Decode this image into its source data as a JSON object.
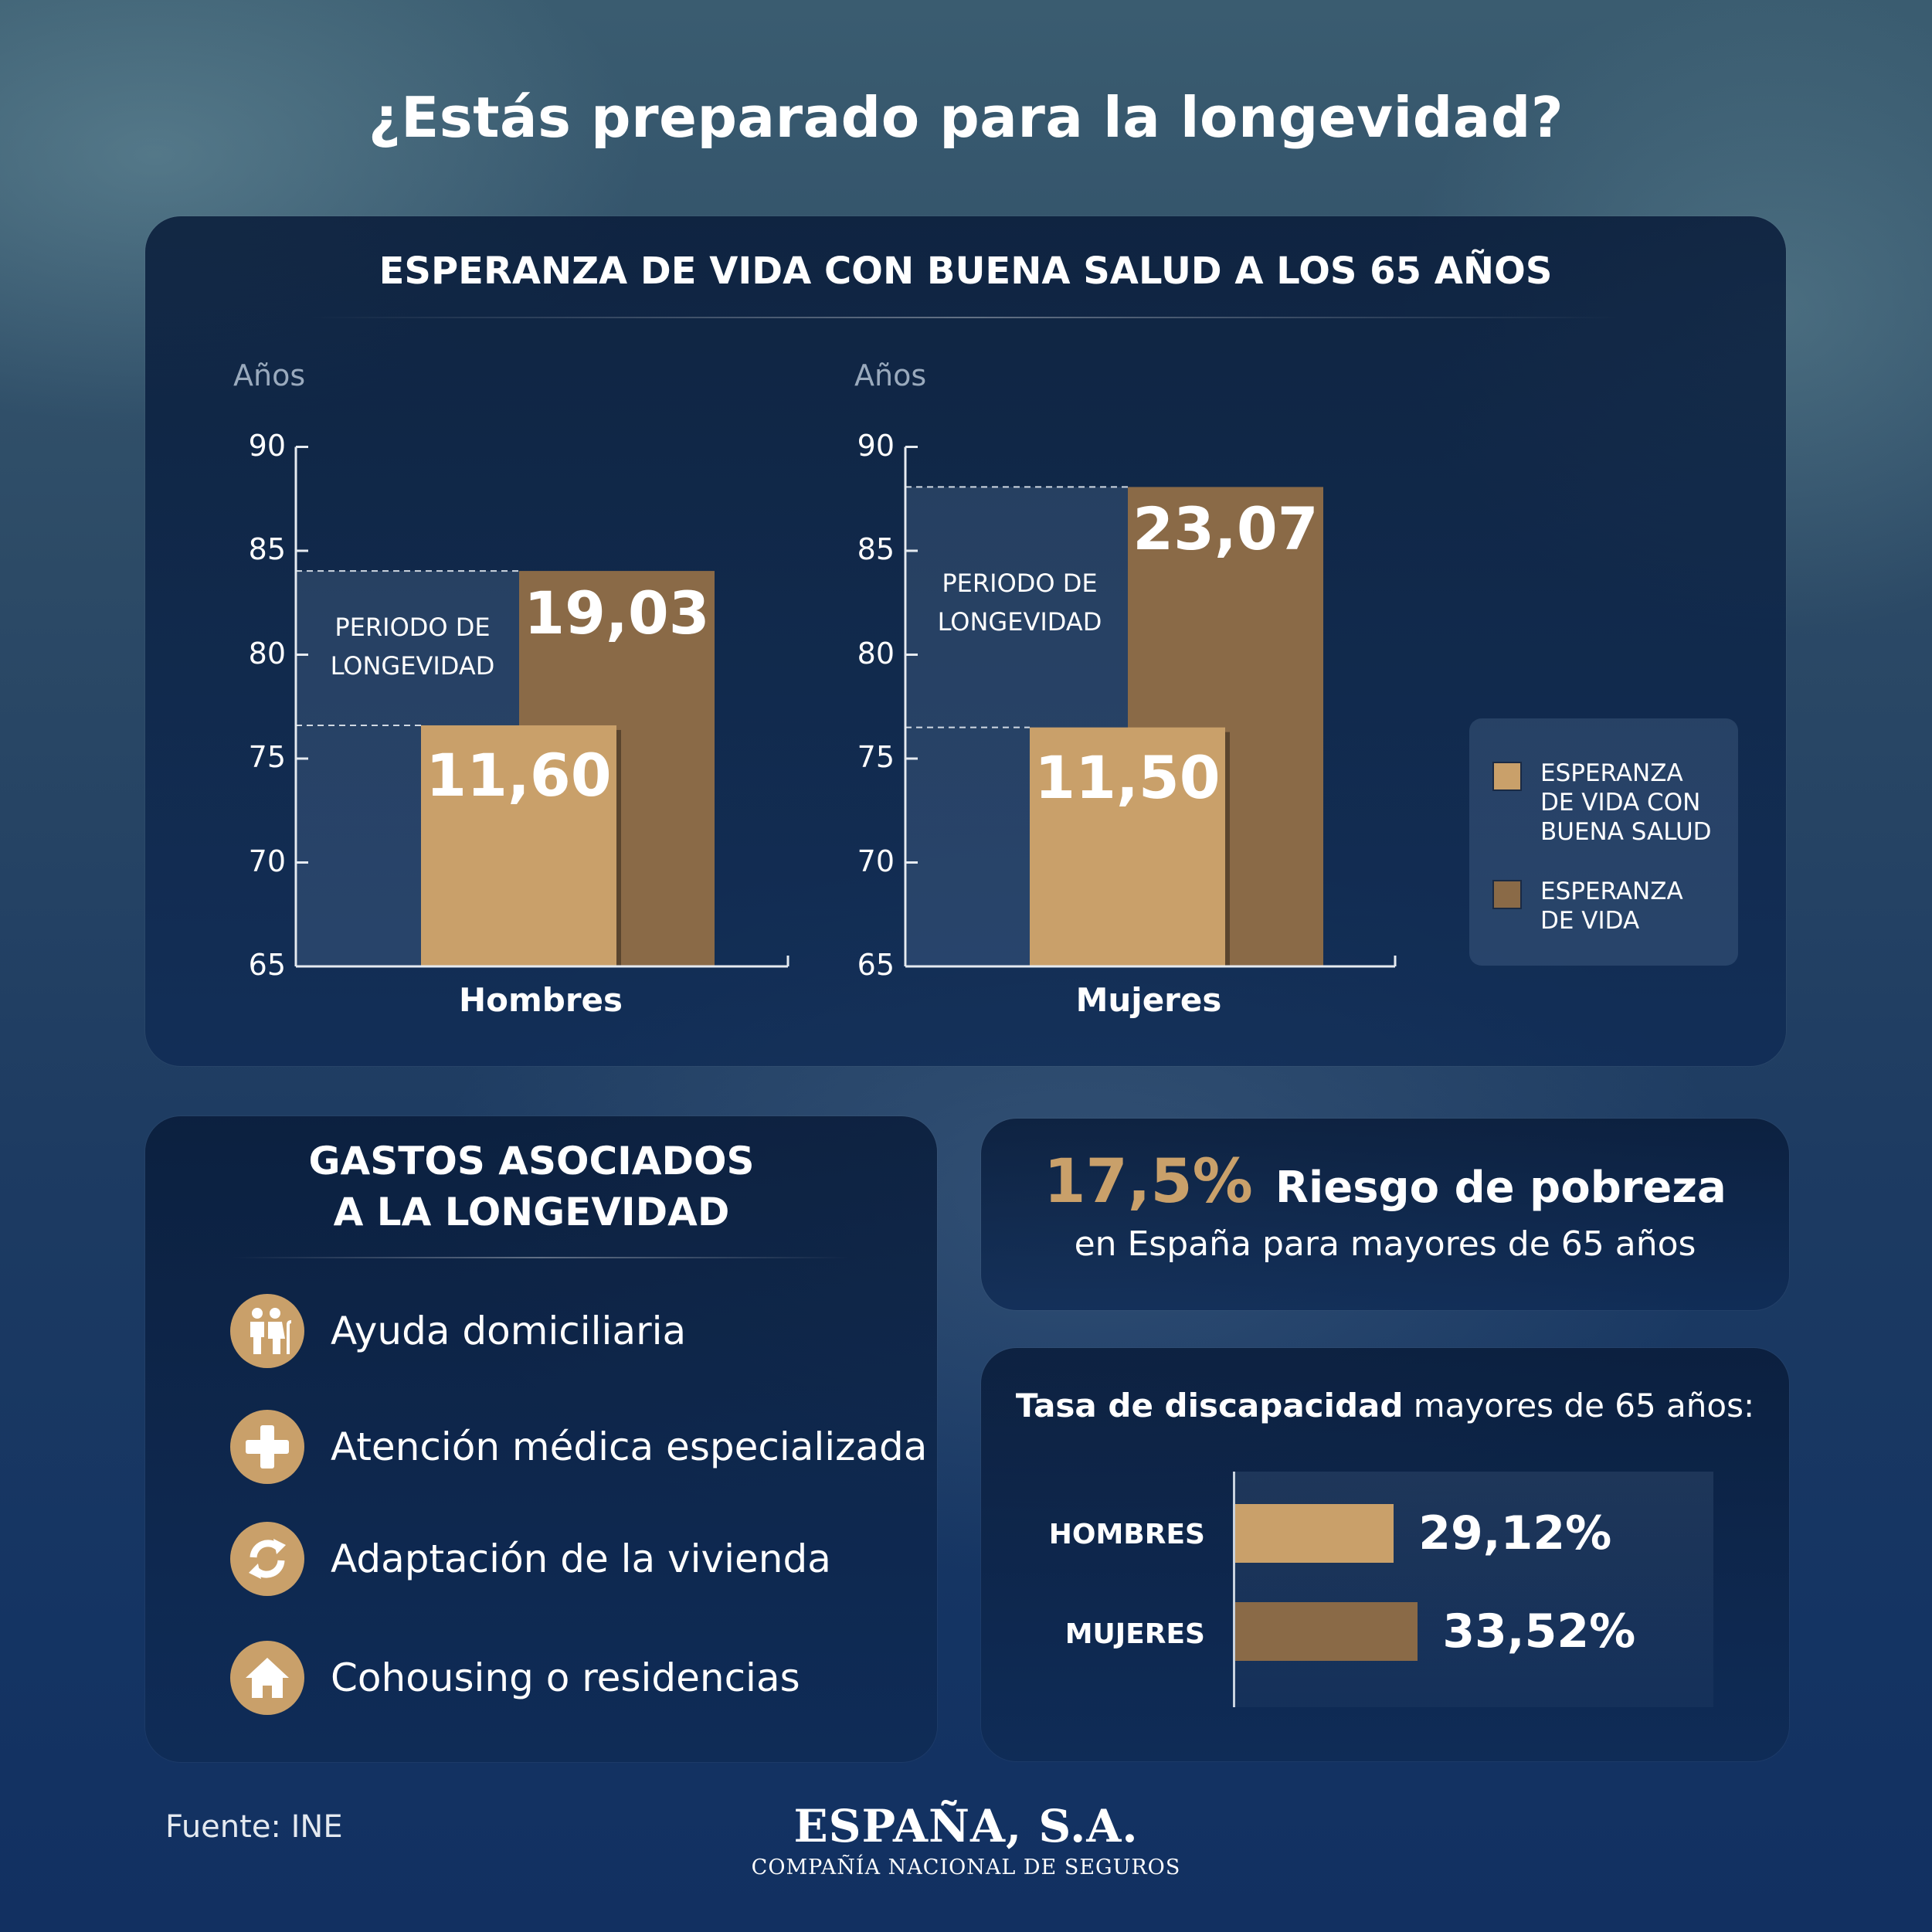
{
  "title": "¿Estás preparado para la longevidad?",
  "colors": {
    "healthy": "#c9a06a",
    "total": "#8a6a47",
    "highlight": "#c9a06a"
  },
  "life_panel": {
    "title": "ESPERANZA DE VIDA CON BUENA SALUD A LOS 65 AÑOS",
    "y_unit": "Años",
    "period_line1": "PERIODO DE",
    "period_line2": "LONGEVIDAD",
    "legend": [
      {
        "line1": "ESPERANZA",
        "line2": "DE VIDA CON",
        "line3": "BUENA SALUD",
        "icon": "tan-square"
      },
      {
        "line1": "ESPERANZA",
        "line2": "DE VIDA",
        "line3": "",
        "icon": "brown-square"
      }
    ]
  },
  "chart_data": [
    {
      "type": "bar",
      "title": "ESPERANZA DE VIDA CON BUENA SALUD A LOS 65 AÑOS",
      "ylabel": "Años",
      "ylim": [
        65,
        90
      ],
      "yticks": [
        "90",
        "85",
        "80",
        "75",
        "70",
        "65"
      ],
      "categories": [
        "Hombres",
        "Mujeres"
      ],
      "series": [
        {
          "name": "ESPERANZA DE VIDA CON BUENA SALUD",
          "years": [
            11.6,
            11.5
          ],
          "labels": [
            "11,60",
            "11,50"
          ]
        },
        {
          "name": "ESPERANZA DE VIDA",
          "years": [
            19.03,
            23.07
          ],
          "labels": [
            "19,03",
            "23,07"
          ]
        }
      ]
    },
    {
      "type": "bar",
      "title": "Tasa de discapacidad mayores de 65 años:",
      "categories": [
        "HOMBRES",
        "MUJERES"
      ],
      "values": [
        29.12,
        33.52
      ],
      "value_labels": [
        "29,12%",
        "33,52%"
      ]
    }
  ],
  "gastos": {
    "title_line1": "GASTOS ASOCIADOS",
    "title_line2": "A LA LONGEVIDAD",
    "items": [
      {
        "label": "Ayuda domiciliaria",
        "icon": "elderly-couple-icon"
      },
      {
        "label": "Atención médica especializada",
        "icon": "medical-cross-icon"
      },
      {
        "label": "Adaptación de la vivienda",
        "icon": "refresh-arrows-icon"
      },
      {
        "label": "Cohousing o residencias",
        "icon": "house-icon"
      }
    ]
  },
  "pobreza": {
    "value": "17,5%",
    "headline": "Riesgo de pobreza",
    "sub": "en España para mayores de 65 años"
  },
  "discapacidad": {
    "title_bold": "Tasa de discapacidad",
    "title_rest": " mayores de 65 años:"
  },
  "footer": {
    "source": "Fuente: INE",
    "brand": "ESPAÑA, S.A.",
    "brand_sub": "COMPAÑÍA NACIONAL DE SEGUROS"
  }
}
